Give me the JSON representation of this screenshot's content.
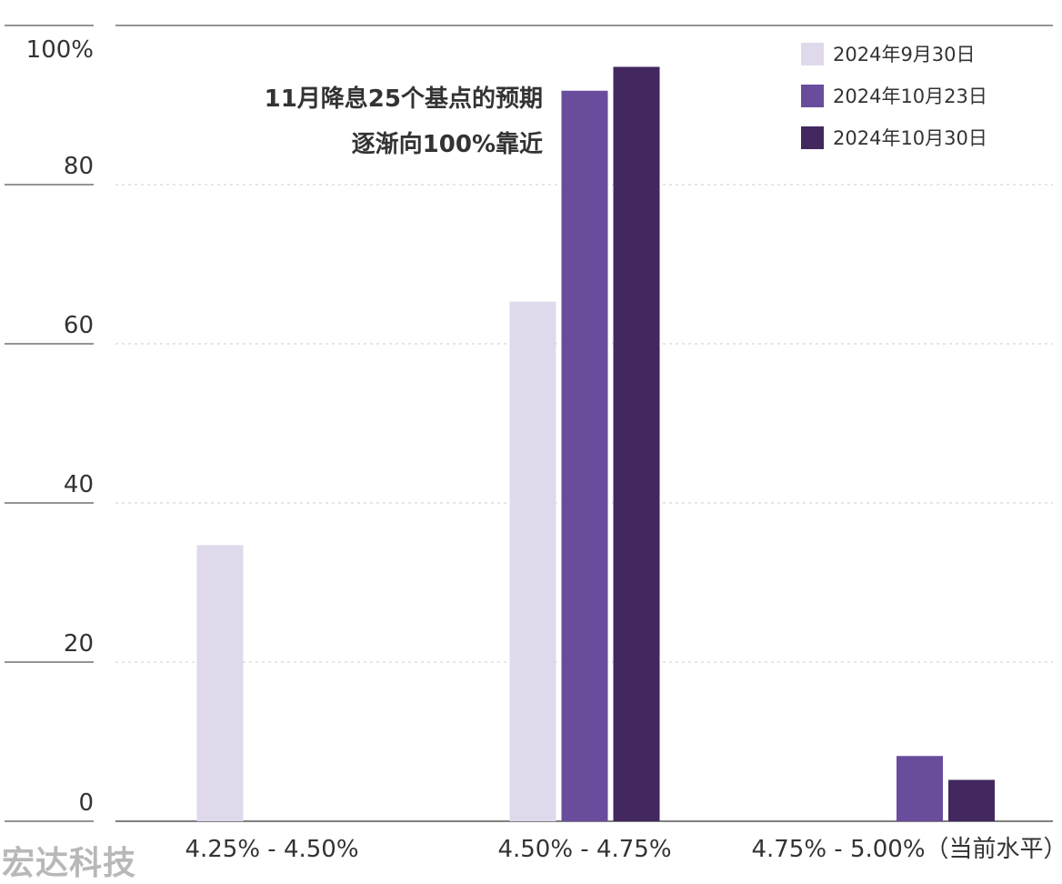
{
  "chart_data": {
    "type": "bar",
    "categories": [
      "4.25% - 4.50%",
      "4.50% - 4.75%",
      "4.75% - 5.00%（当前水平）"
    ],
    "series": [
      {
        "name": "2024年9月30日",
        "color": "#e0d9ec",
        "values": [
          34.7,
          65.3,
          0
        ]
      },
      {
        "name": "2024年10月23日",
        "color": "#6a4c9c",
        "values": [
          0,
          91.8,
          8.2
        ]
      },
      {
        "name": "2024年10月30日",
        "color": "#42285e",
        "values": [
          0,
          94.8,
          5.2
        ]
      }
    ],
    "y_ticks": [
      "0",
      "20",
      "40",
      "60",
      "80",
      "100%"
    ],
    "ylim": [
      0,
      100
    ],
    "annotation": [
      "11月降息25个基点的预期",
      "逐渐向100%靠近"
    ],
    "legend_position": "top-right",
    "grid": true
  },
  "watermark": "宏达科技"
}
